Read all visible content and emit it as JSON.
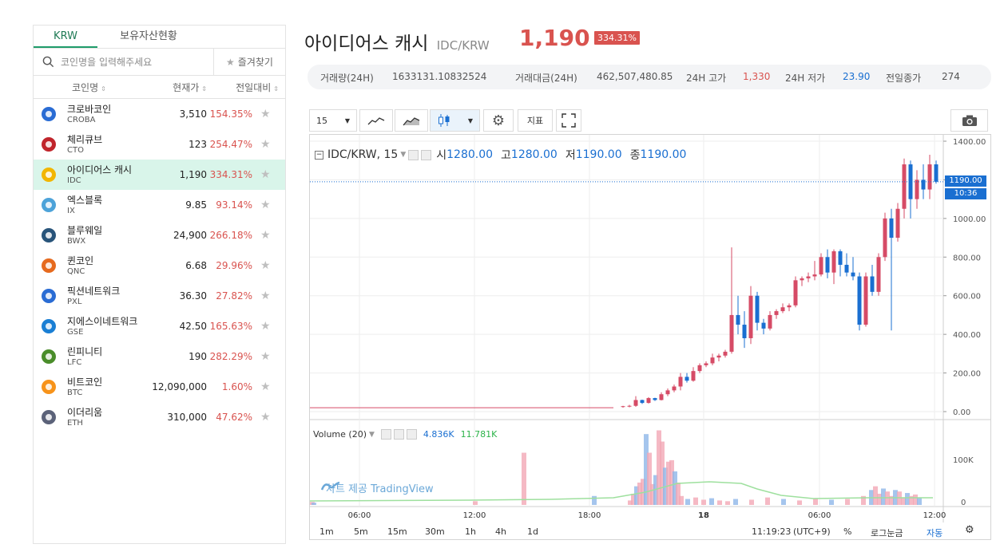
{
  "left_panel": {
    "tabs": [
      "KRW",
      "보유자산현황"
    ],
    "search_placeholder": "코인명을 입력해주세요",
    "favorites_label": "즐겨찾기",
    "columns": {
      "name": "코인명",
      "price": "현재가",
      "change": "전일대비"
    },
    "sort_glyph": "⇕",
    "coins": [
      {
        "name": "크로바코인",
        "symbol": "CROBA",
        "price": "3,510",
        "change": "154.35%",
        "icon": "croba-icon",
        "color": "#2a6cd4"
      },
      {
        "name": "체리큐브",
        "symbol": "CTO",
        "price": "123",
        "change": "254.47%",
        "icon": "cherry-cube-icon",
        "color": "#c0242b"
      },
      {
        "name": "아이디어스 캐시",
        "symbol": "IDC",
        "price": "1,190",
        "change": "334.31%",
        "icon": "ideas-cash-icon",
        "color": "#f2b600"
      },
      {
        "name": "엑스블록",
        "symbol": "IX",
        "price": "9.85",
        "change": "93.14%",
        "icon": "xblock-icon",
        "color": "#4da3d9"
      },
      {
        "name": "블루웨일",
        "symbol": "BWX",
        "price": "24,900",
        "change": "266.18%",
        "icon": "bluewhale-icon",
        "color": "#28547a"
      },
      {
        "name": "퀸코인",
        "symbol": "QNC",
        "price": "6.68",
        "change": "29.96%",
        "icon": "queen-icon",
        "color": "#e66a1e"
      },
      {
        "name": "픽션네트워크",
        "symbol": "PXL",
        "price": "36.30",
        "change": "27.82%",
        "icon": "pixel-icon",
        "color": "#2a6cd4"
      },
      {
        "name": "지에스이네트워크",
        "symbol": "GSE",
        "price": "42.50",
        "change": "165.63%",
        "icon": "gse-icon",
        "color": "#1a7fd4"
      },
      {
        "name": "린피니티",
        "symbol": "LFC",
        "price": "190",
        "change": "282.29%",
        "icon": "linfinity-icon",
        "color": "#4a8d2a"
      },
      {
        "name": "비트코인",
        "symbol": "BTC",
        "price": "12,090,000",
        "change": "1.60%",
        "icon": "bitcoin-icon",
        "color": "#f7931a"
      },
      {
        "name": "이더리움",
        "symbol": "ETH",
        "price": "310,000",
        "change": "47.62%",
        "icon": "ethereum-icon",
        "color": "#5b6279"
      }
    ]
  },
  "header": {
    "name": "아이디어스 캐시",
    "pair": "IDC/KRW",
    "price": "1,190",
    "change_badge": "334.31%"
  },
  "info": {
    "volume_label": "거래량(24H)",
    "volume": "1633131.10832524",
    "amount_label": "거래대금(24H)",
    "amount": "462,507,480.85",
    "high_label": "24H 고가",
    "high": "1,330",
    "low_label": "24H 저가",
    "low": "23.90",
    "prev_label": "전일종가",
    "prev": "274"
  },
  "toolbar": {
    "interval": "15",
    "indicators_label": "지표"
  },
  "chart_data": {
    "type": "candlestick",
    "symbol_label": "IDC/KRW, 15",
    "ohlc": {
      "o_label": "시",
      "o": "1280.00",
      "h_label": "고",
      "h": "1280.00",
      "l_label": "저",
      "l": "1190.00",
      "c_label": "종",
      "c": "1190.00"
    },
    "last_price_tag": "1190.00",
    "time_tag": "10:36",
    "price_axis": [
      "1400.00",
      "1200.00",
      "1000.00",
      "800.00",
      "600.00",
      "400.00",
      "200.00",
      "0.00"
    ],
    "ylim": [
      0,
      1400
    ],
    "volume_axis": [
      "100K",
      "0"
    ],
    "volume_legend": {
      "label": "Volume (20)",
      "v1": "4.836K",
      "v2": "11.781K"
    },
    "time_axis": [
      "06:00",
      "12:00",
      "18:00",
      "18",
      "06:00",
      "12:00"
    ],
    "watermark": "차트 제공 TradingView",
    "colors": {
      "up": "#d64b66",
      "down": "#1a6fd1"
    }
  },
  "bottom_bar": {
    "ranges": [
      "1m",
      "5m",
      "15m",
      "30m",
      "1h",
      "4h",
      "1d"
    ],
    "clock": "11:19:23",
    "tz": "(UTC+9)",
    "percent": "%",
    "log": "로그눈금",
    "auto": "자동"
  }
}
